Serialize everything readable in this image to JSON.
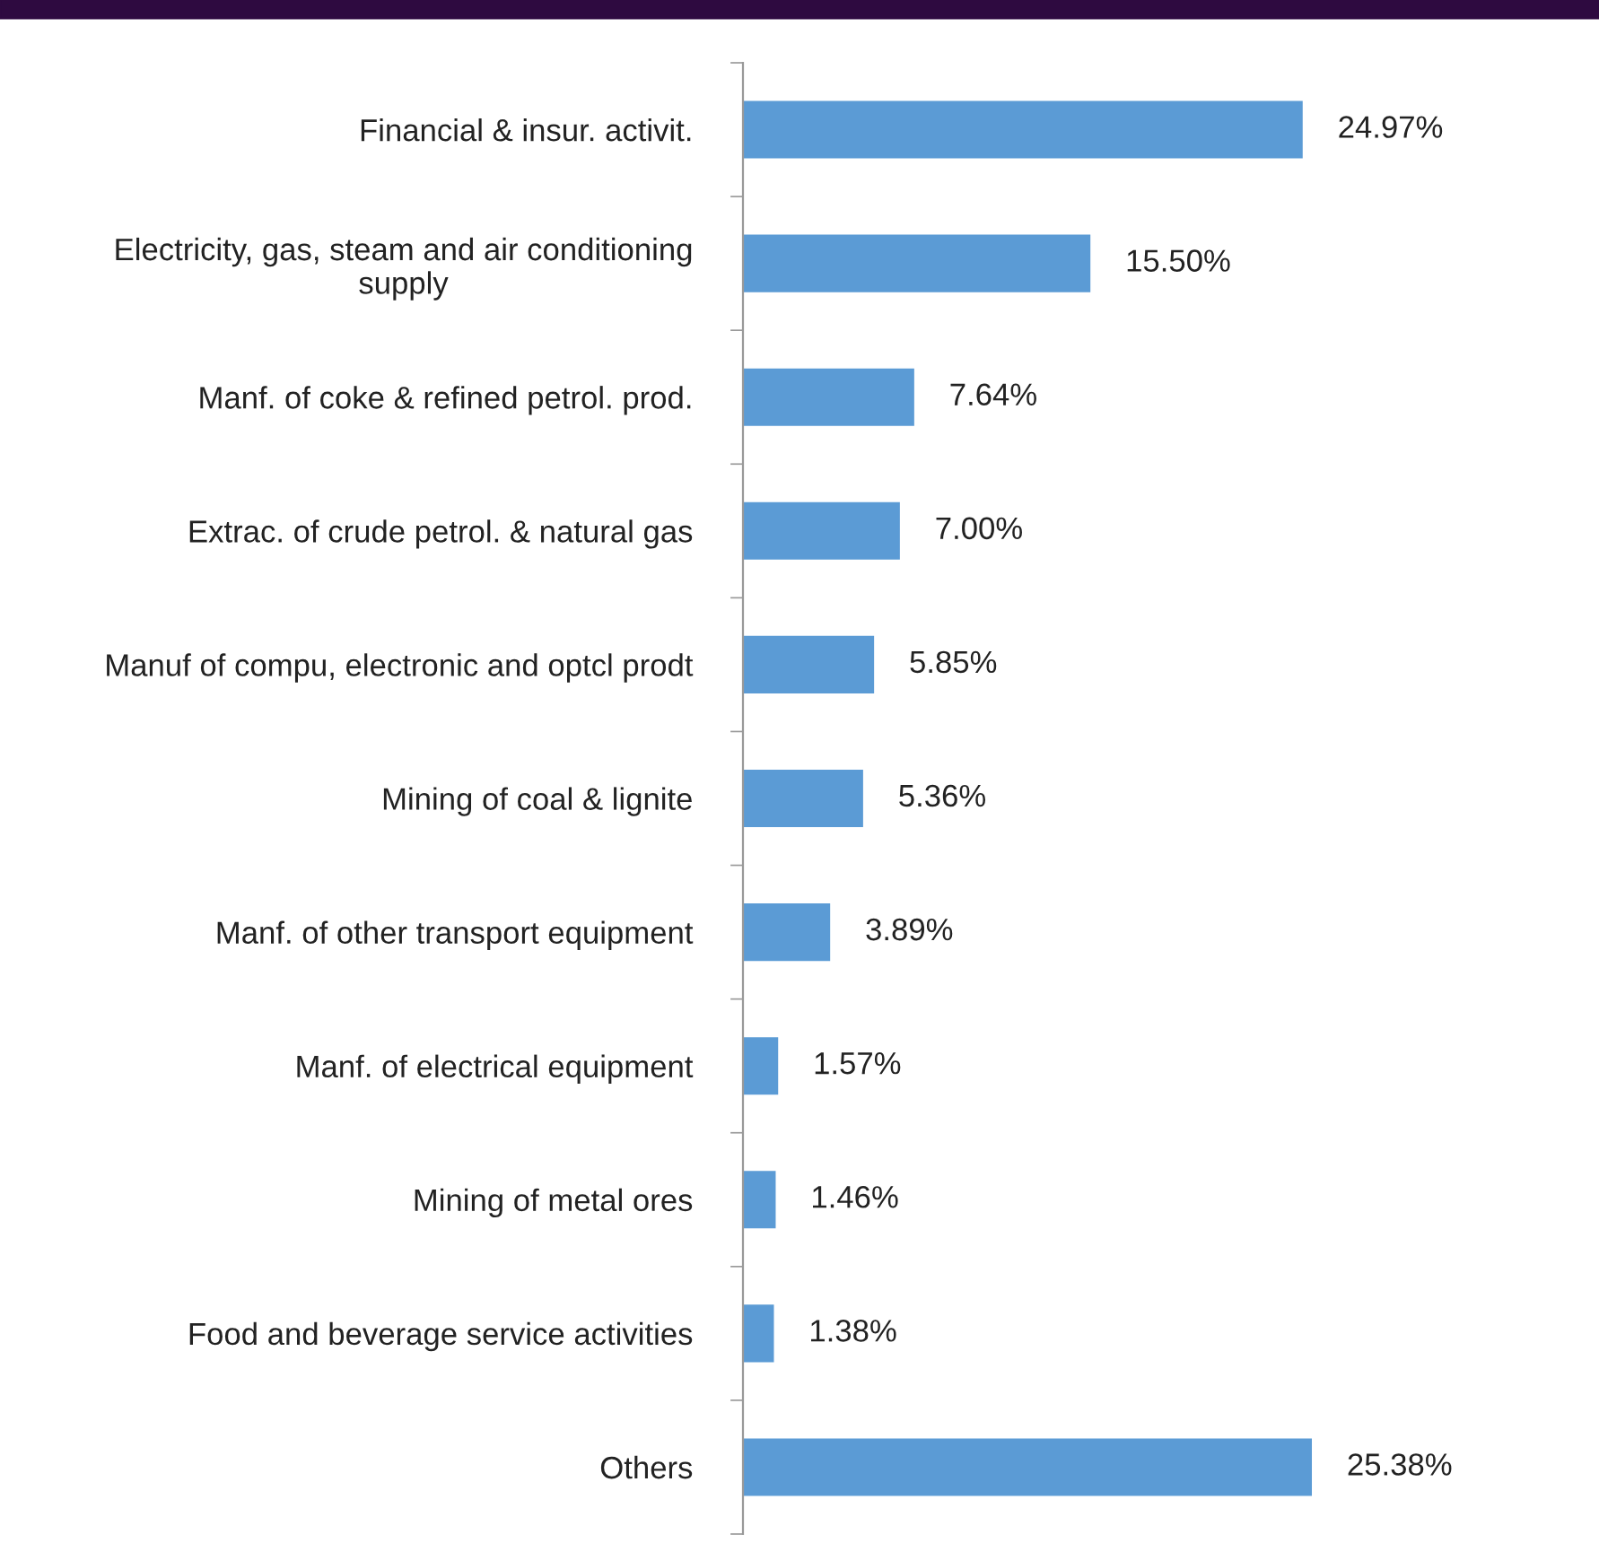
{
  "chart_data": {
    "type": "bar",
    "orientation": "horizontal",
    "data_labels": true,
    "grid": false,
    "legend": false,
    "tick_labels": "y",
    "categories": [
      "Financial & insur. activit.",
      "Electricity, gas, steam and air conditioning\nsupply",
      "Manf. of coke & refined petrol. prod.",
      "Extrac. of crude petrol. & natural gas",
      "Manuf of compu, electronic and optcl prodt",
      "Mining of coal & lignite",
      "Manf. of other transport equipment",
      "Manf. of electrical equipment",
      "Mining of metal ores",
      "Food and beverage service activities",
      "Others"
    ],
    "series": [
      {
        "color": "#5b9bd5",
        "values": [
          24.97,
          15.5,
          7.64,
          7.0,
          5.85,
          5.36,
          3.89,
          1.57,
          1.46,
          1.38,
          25.38
        ],
        "value_labels": [
          "24.97%",
          "15.50%",
          "7.64%",
          "7.00%",
          "5.85%",
          "5.36%",
          "3.89%",
          "1.57%",
          "1.46%",
          "1.38%",
          "25.38%"
        ]
      }
    ]
  }
}
